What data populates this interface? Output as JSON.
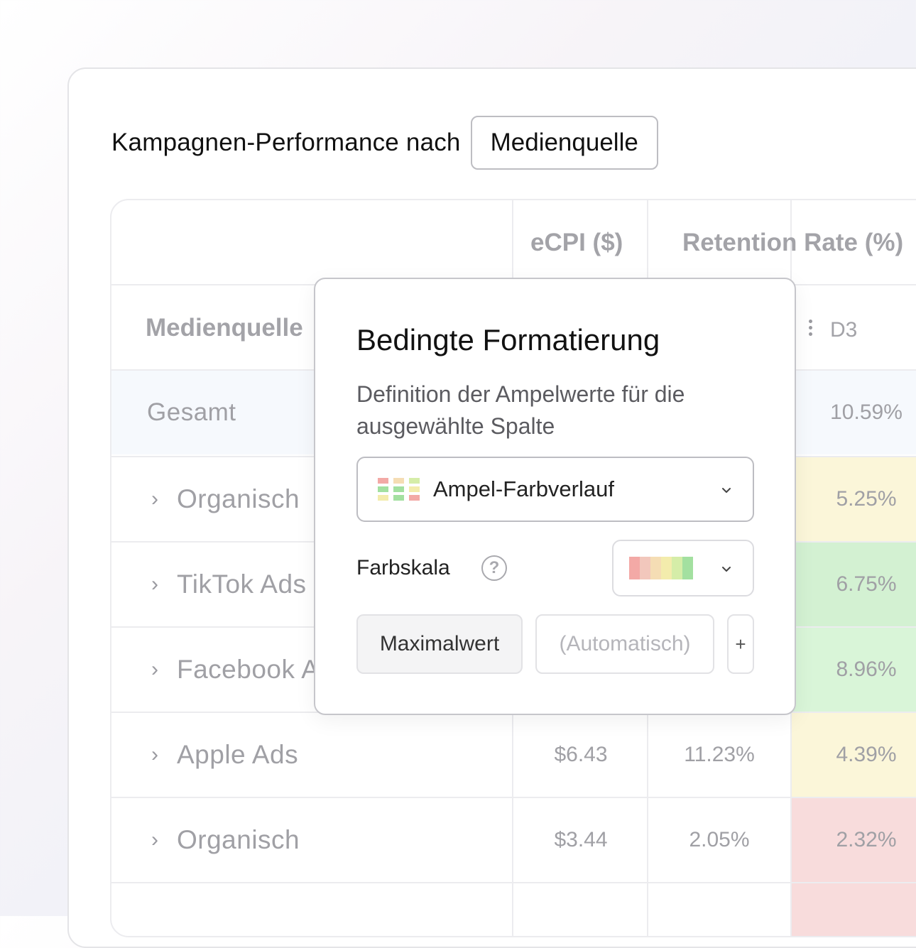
{
  "header": {
    "title_prefix": "Kampagnen-Performance nach",
    "source_button": "Medienquelle"
  },
  "table": {
    "col_ecpi": "eCPI ($)",
    "col_retention": "Retention Rate (%)",
    "col_source": "Medienquelle",
    "col_d3": "D3",
    "total": {
      "label": "Gesamt",
      "d3": "10.59%"
    },
    "rows": [
      {
        "name": "Organisch",
        "ecpi": "",
        "retention": "",
        "d3": "5.25%",
        "color": "#fbf6d9"
      },
      {
        "name": "TikTok Ads",
        "ecpi": "",
        "retention": "",
        "d3": "6.75%",
        "color": "#d3f1d2"
      },
      {
        "name": "Facebook Ads",
        "ecpi": "",
        "retention": "",
        "d3": "8.96%",
        "color": "#d9f5d8"
      },
      {
        "name": "Apple Ads",
        "ecpi": "$6.43",
        "retention": "11.23%",
        "d3": "4.39%",
        "color": "#fbf6d9"
      },
      {
        "name": "Organisch",
        "ecpi": "$3.44",
        "retention": "2.05%",
        "d3": "2.32%",
        "color": "#f8dcdc"
      }
    ]
  },
  "popover": {
    "title": "Bedingte Formatierung",
    "description": "Definition der Ampelwerte für die ausgewählte Spalte",
    "format_select": "Ampel-Farbverlauf",
    "farbskala_label": "Farbskala",
    "help_symbol": "?",
    "scale_colors": [
      "#f3a9a6",
      "#f2c7bc",
      "#f5ddb4",
      "#f3ecac",
      "#d5eda8",
      "#a3e0a0"
    ],
    "max_button": "Maximalwert",
    "auto_button": "(Automatisch)",
    "plus_button": "+"
  }
}
